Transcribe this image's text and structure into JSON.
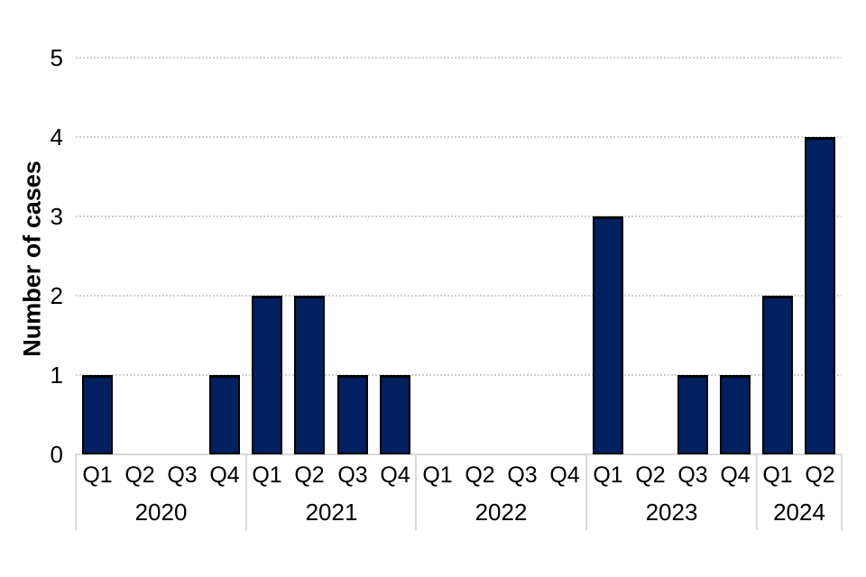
{
  "chart_data": {
    "type": "bar",
    "title": "",
    "ylabel": "Number of cases",
    "xlabel": "",
    "ylim": [
      0,
      5
    ],
    "yticks": [
      "0",
      "1",
      "2",
      "3",
      "4",
      "5"
    ],
    "grid": "horizontal",
    "legend": "none",
    "bar_color": "#002060",
    "bar_border_color": "#000000",
    "gridline_color": "#d9d9d9",
    "axis_box_color": "#d9d9d9",
    "text_color": "#000000",
    "groups": [
      {
        "year": "2020",
        "quarters": [
          "Q1",
          "Q2",
          "Q3",
          "Q4"
        ],
        "values": [
          1,
          0,
          0,
          1
        ]
      },
      {
        "year": "2021",
        "quarters": [
          "Q1",
          "Q2",
          "Q3",
          "Q4"
        ],
        "values": [
          2,
          2,
          1,
          1
        ]
      },
      {
        "year": "2022",
        "quarters": [
          "Q1",
          "Q2",
          "Q3",
          "Q4"
        ],
        "values": [
          0,
          0,
          0,
          0
        ]
      },
      {
        "year": "2023",
        "quarters": [
          "Q1",
          "Q2",
          "Q3",
          "Q4"
        ],
        "values": [
          3,
          0,
          1,
          1
        ]
      },
      {
        "year": "2024",
        "quarters": [
          "Q1",
          "Q2"
        ],
        "values": [
          2,
          4
        ]
      }
    ]
  }
}
